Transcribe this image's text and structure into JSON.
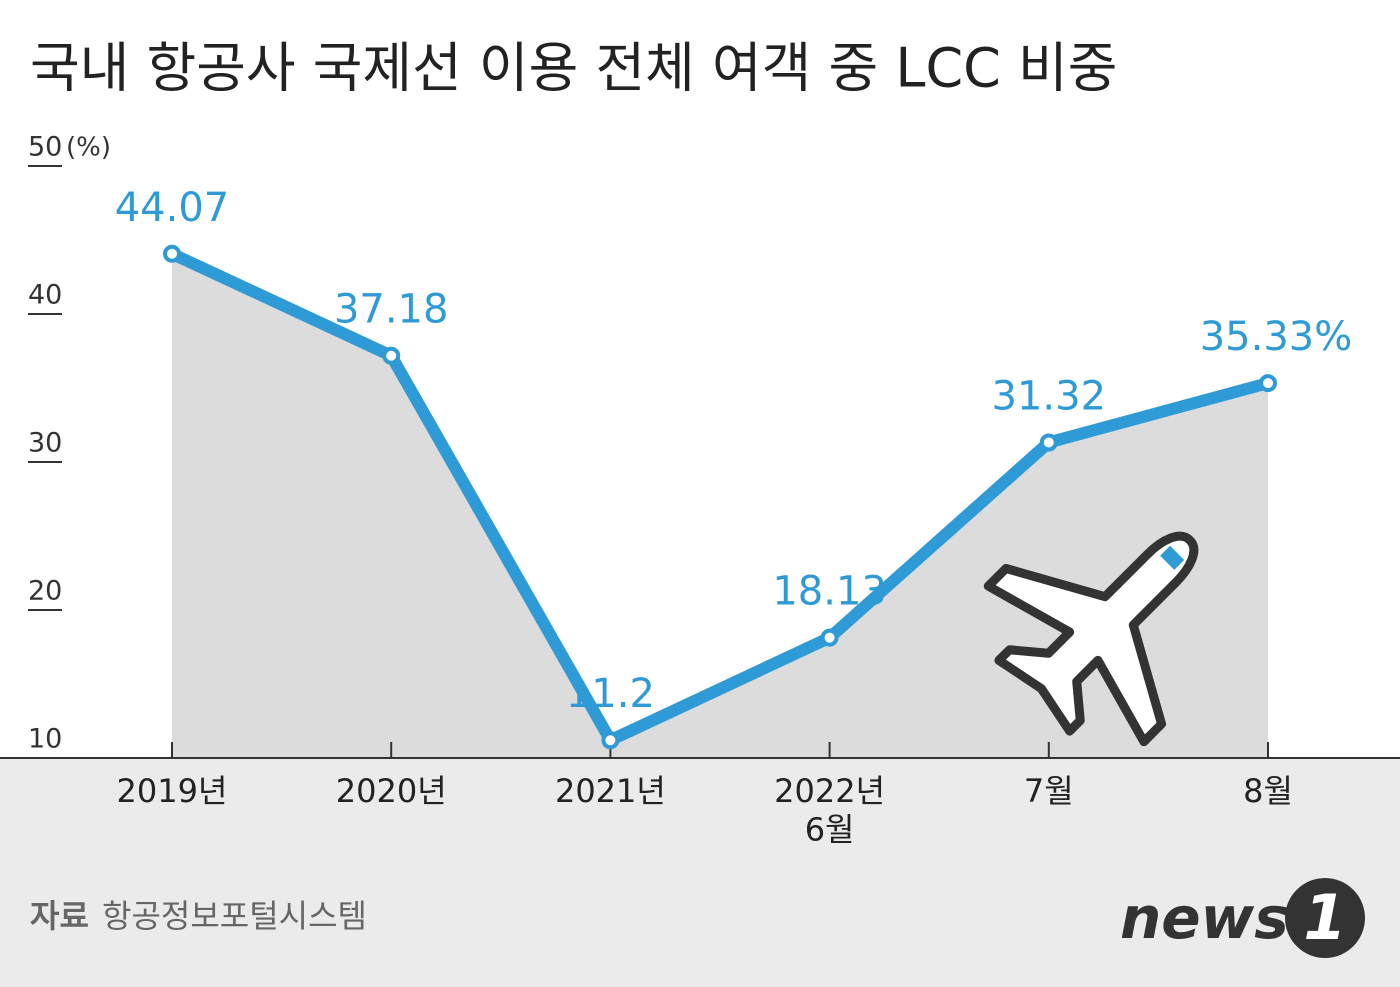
{
  "chart_data": {
    "type": "line",
    "title": "국내 항공사 국제선 이용 전체 여객 중 LCC 비중",
    "y_unit": "(%)",
    "categories": [
      "2019년",
      "2020년",
      "2021년",
      "2022년\n6월",
      "7월",
      "8월"
    ],
    "values": [
      44.07,
      37.18,
      11.2,
      18.13,
      31.32,
      35.33
    ],
    "value_labels": [
      "44.07",
      "37.18",
      "11.2",
      "18.13",
      "31.32",
      "35.33%"
    ],
    "color": "#2e9bd6",
    "area_color": "#dcdcdc",
    "ylim": [
      10,
      50
    ],
    "yticks": [
      10,
      20,
      30,
      40,
      50
    ],
    "source_label": "자료",
    "source": "항공정보포털시스템",
    "logo": {
      "text": "news",
      "mark": "1"
    }
  }
}
